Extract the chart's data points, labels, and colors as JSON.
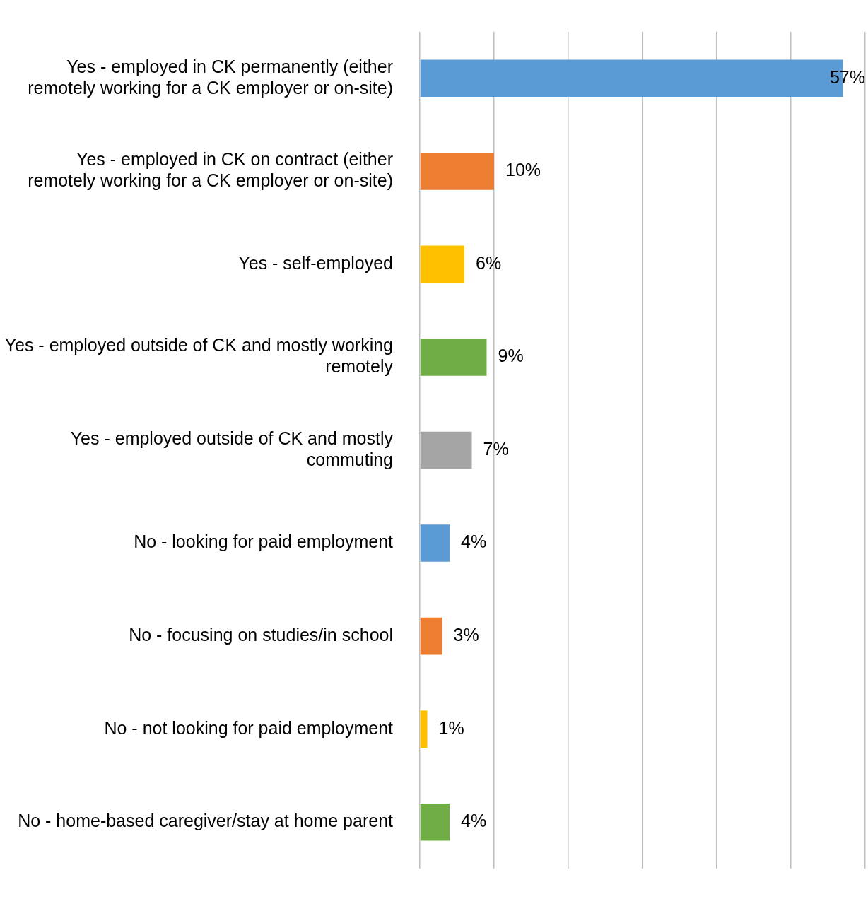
{
  "chart_data": {
    "type": "bar",
    "orientation": "horizontal",
    "categories": [
      "Yes - employed in CK permanently (either remotely working for a CK employer or on-site)",
      "Yes - employed in CK on contract (either remotely working for a CK employer or on-site)",
      "Yes - self-employed",
      "Yes - employed outside of CK and mostly working remotely",
      "Yes - employed outside of CK and mostly commuting",
      "No - looking for paid employment",
      "No - focusing on studies/in school",
      "No - not looking for paid employment",
      "No - home-based caregiver/stay at home parent"
    ],
    "values": [
      57,
      10,
      6,
      9,
      7,
      4,
      3,
      1,
      4
    ],
    "value_labels": [
      "57%",
      "10%",
      "6%",
      "9%",
      "7%",
      "4%",
      "3%",
      "1%",
      "4%"
    ],
    "colors": [
      "#5b9bd5",
      "#ed7d31",
      "#ffc000",
      "#70ad47",
      "#a5a5a5",
      "#5b9bd5",
      "#ed7d31",
      "#ffc000",
      "#70ad47"
    ],
    "xlim": [
      0,
      60
    ],
    "xticks": [
      {
        "value": 0,
        "label": null
      },
      {
        "value": 10,
        "label": null
      },
      {
        "value": 20,
        "label": null
      },
      {
        "value": 30,
        "label": null
      },
      {
        "value": 40,
        "label": null
      },
      {
        "value": 50,
        "label": null
      },
      {
        "value": 60,
        "label": null
      }
    ],
    "grid": "x",
    "tick_labels": "y",
    "legend": false
  }
}
